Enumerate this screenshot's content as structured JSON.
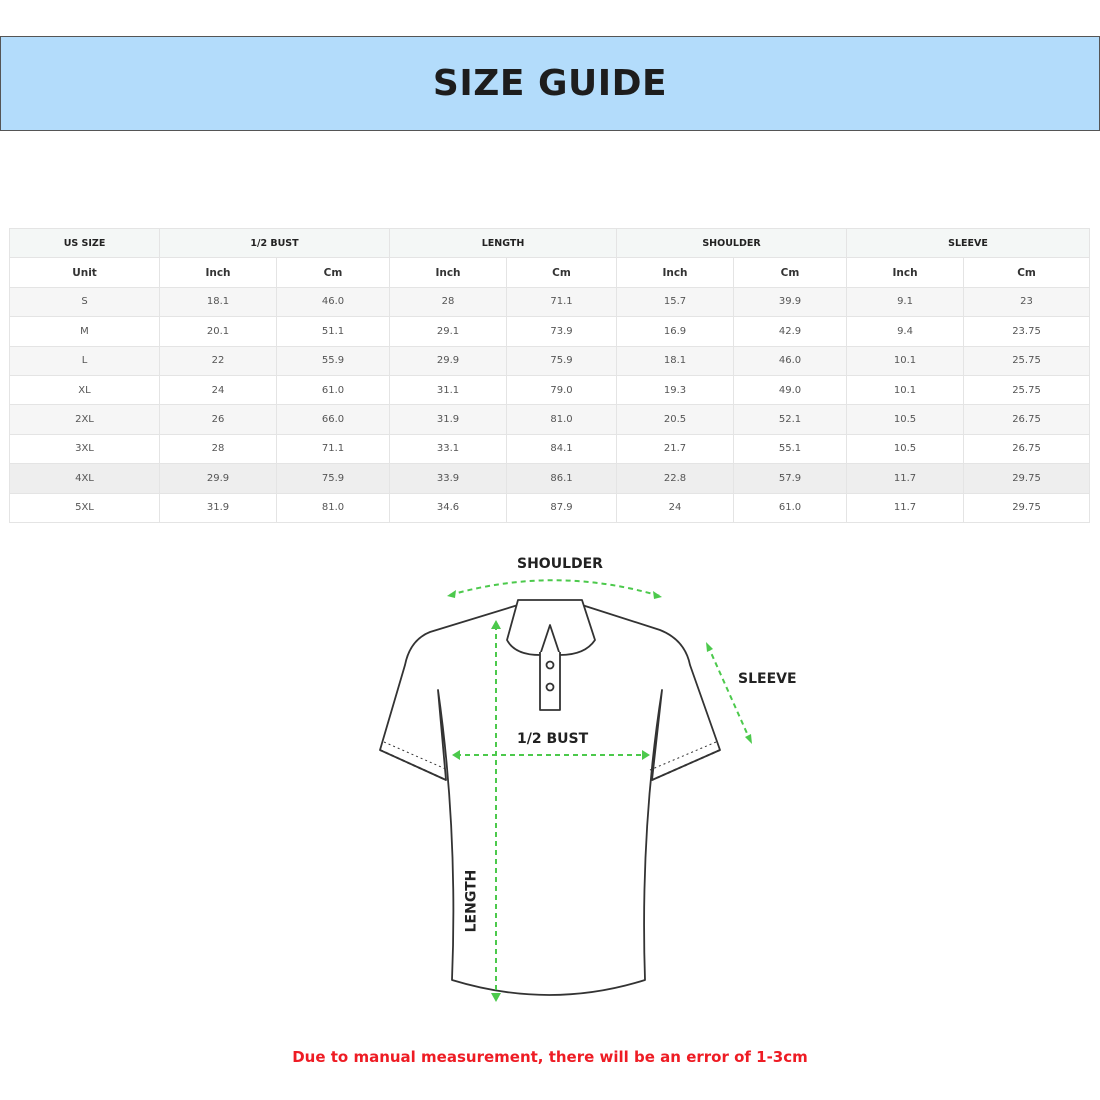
{
  "title": "SIZE GUIDE",
  "table": {
    "groups": [
      "US SIZE",
      "1/2 BUST",
      "LENGTH",
      "SHOULDER",
      "SLEEVE"
    ],
    "units": [
      "Unit",
      "Inch",
      "Cm",
      "Inch",
      "Cm",
      "Inch",
      "Cm",
      "Inch",
      "Cm"
    ],
    "rows": [
      [
        "S",
        "18.1",
        "46.0",
        "28",
        "71.1",
        "15.7",
        "39.9",
        "9.1",
        "23"
      ],
      [
        "M",
        "20.1",
        "51.1",
        "29.1",
        "73.9",
        "16.9",
        "42.9",
        "9.4",
        "23.75"
      ],
      [
        "L",
        "22",
        "55.9",
        "29.9",
        "75.9",
        "18.1",
        "46.0",
        "10.1",
        "25.75"
      ],
      [
        "XL",
        "24",
        "61.0",
        "31.1",
        "79.0",
        "19.3",
        "49.0",
        "10.1",
        "25.75"
      ],
      [
        "2XL",
        "26",
        "66.0",
        "31.9",
        "81.0",
        "20.5",
        "52.1",
        "10.5",
        "26.75"
      ],
      [
        "3XL",
        "28",
        "71.1",
        "33.1",
        "84.1",
        "21.7",
        "55.1",
        "10.5",
        "26.75"
      ],
      [
        "4XL",
        "29.9",
        "75.9",
        "33.9",
        "86.1",
        "22.8",
        "57.9",
        "11.7",
        "29.75"
      ],
      [
        "5XL",
        "31.9",
        "81.0",
        "34.6",
        "87.9",
        "24",
        "61.0",
        "11.7",
        "29.75"
      ]
    ]
  },
  "diagram": {
    "shoulder": "SHOULDER",
    "sleeve": "SLEEVE",
    "bust": "1/2 BUST",
    "length": "LENGTH",
    "arrow_color": "#4cc94c"
  },
  "note": "Due to manual measurement, there will be an error of 1-3cm",
  "colors": {
    "banner": "#b3dcfb",
    "note": "#ee1c24"
  }
}
